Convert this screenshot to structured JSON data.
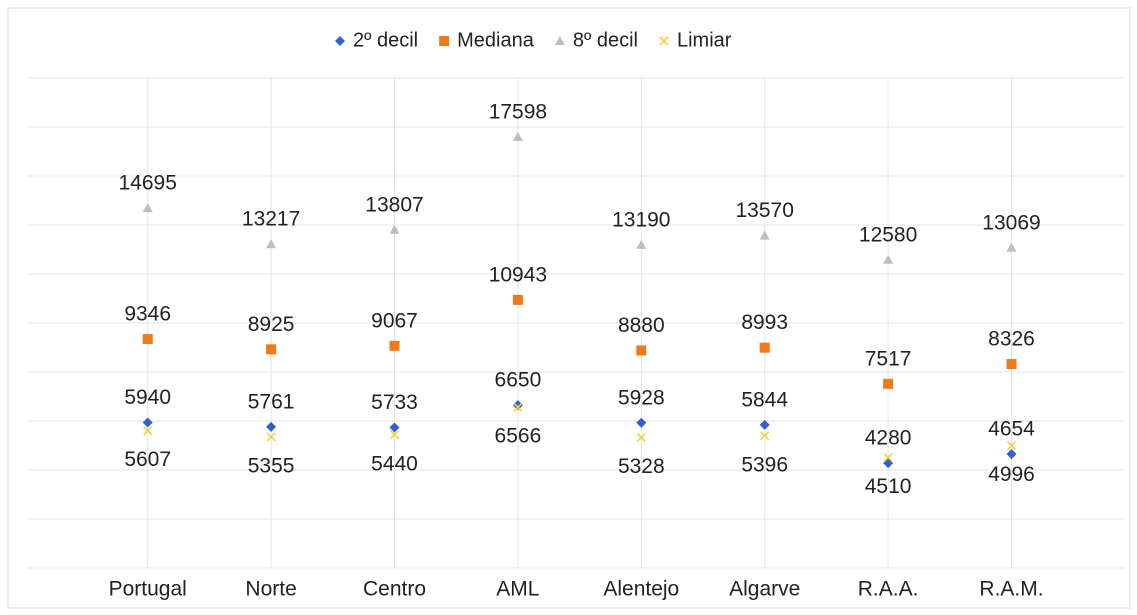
{
  "chart_data": {
    "type": "scatter",
    "categories": [
      "Portugal",
      "Norte",
      "Centro",
      "AML",
      "Alentejo",
      "Algarve",
      "R.A.A.",
      "R.A.M."
    ],
    "series": [
      {
        "name": "2º decil",
        "color": "#2f5fd0",
        "marker": "diamond",
        "values": [
          5940,
          5761,
          5733,
          6650,
          5928,
          5844,
          4280,
          4654
        ]
      },
      {
        "name": "Mediana",
        "color": "#f07a1a",
        "marker": "square",
        "values": [
          9346,
          8925,
          9067,
          10943,
          8880,
          8993,
          7517,
          8326
        ]
      },
      {
        "name": "8º decil",
        "color": "#bdbdbd",
        "marker": "triangle",
        "values": [
          14695,
          13217,
          13807,
          17598,
          13190,
          13570,
          12580,
          13069
        ]
      },
      {
        "name": "Limiar",
        "color": "#f2d23c",
        "marker": "x",
        "values": [
          5607,
          5355,
          5440,
          6566,
          5328,
          5396,
          4510,
          4996
        ]
      }
    ],
    "ylim": [
      0,
      20000
    ],
    "yticks": [
      0,
      2000,
      4000,
      6000,
      8000,
      10000,
      12000,
      14000,
      16000,
      18000,
      20000
    ],
    "grid": true
  }
}
